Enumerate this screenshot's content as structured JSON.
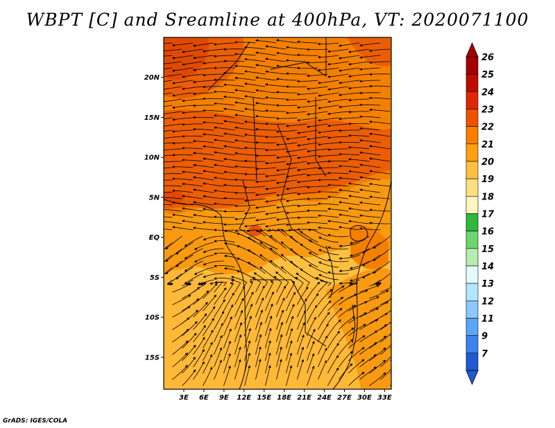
{
  "title": "WBPT [C] and Sreamline at 400hPa, VT: 2020071100",
  "credit": "GrADS: IGES/COLA",
  "map": {
    "lon_range": [
      0,
      34
    ],
    "lat_range": [
      -19,
      25
    ],
    "lat_ticks": [
      {
        "value": 20,
        "label": "20N"
      },
      {
        "value": 15,
        "label": "15N"
      },
      {
        "value": 10,
        "label": "10N"
      },
      {
        "value": 5,
        "label": "5N"
      },
      {
        "value": 0,
        "label": "EQ"
      },
      {
        "value": -5,
        "label": "5S"
      },
      {
        "value": -10,
        "label": "10S"
      },
      {
        "value": -15,
        "label": "15S"
      }
    ],
    "lon_ticks": [
      {
        "value": 3,
        "label": "3E"
      },
      {
        "value": 6,
        "label": "6E"
      },
      {
        "value": 9,
        "label": "9E"
      },
      {
        "value": 12,
        "label": "12E"
      },
      {
        "value": 15,
        "label": "15E"
      },
      {
        "value": 18,
        "label": "18E"
      },
      {
        "value": 21,
        "label": "21E"
      },
      {
        "value": 24,
        "label": "24E"
      },
      {
        "value": 27,
        "label": "27E"
      },
      {
        "value": 30,
        "label": "30E"
      },
      {
        "value": 33,
        "label": "33E"
      }
    ]
  },
  "colorbar": {
    "levels": [
      {
        "label": "26",
        "color": "#a50000"
      },
      {
        "label": "25",
        "color": "#c00a00"
      },
      {
        "label": "24",
        "color": "#e02800"
      },
      {
        "label": "23",
        "color": "#f05000"
      },
      {
        "label": "22",
        "color": "#fa7d00"
      },
      {
        "label": "21",
        "color": "#ffa010"
      },
      {
        "label": "20",
        "color": "#ffc040"
      },
      {
        "label": "19",
        "color": "#ffe080"
      },
      {
        "label": "18",
        "color": "#fff5c0"
      },
      {
        "label": "17",
        "color": "#2fb83c"
      },
      {
        "label": "16",
        "color": "#6ed66e"
      },
      {
        "label": "15",
        "color": "#b5ecb0"
      },
      {
        "label": "14",
        "color": "#e1fbff"
      },
      {
        "label": "13",
        "color": "#b4e6ff"
      },
      {
        "label": "12",
        "color": "#8cc8ff"
      },
      {
        "label": "11",
        "color": "#5aa5fa"
      },
      {
        "label": "9",
        "color": "#3c82f0"
      },
      {
        "label": "7",
        "color": "#1e5ad2"
      }
    ],
    "top_arrow_color": "#a50000",
    "bottom_arrow_color": "#1e5ad2"
  }
}
